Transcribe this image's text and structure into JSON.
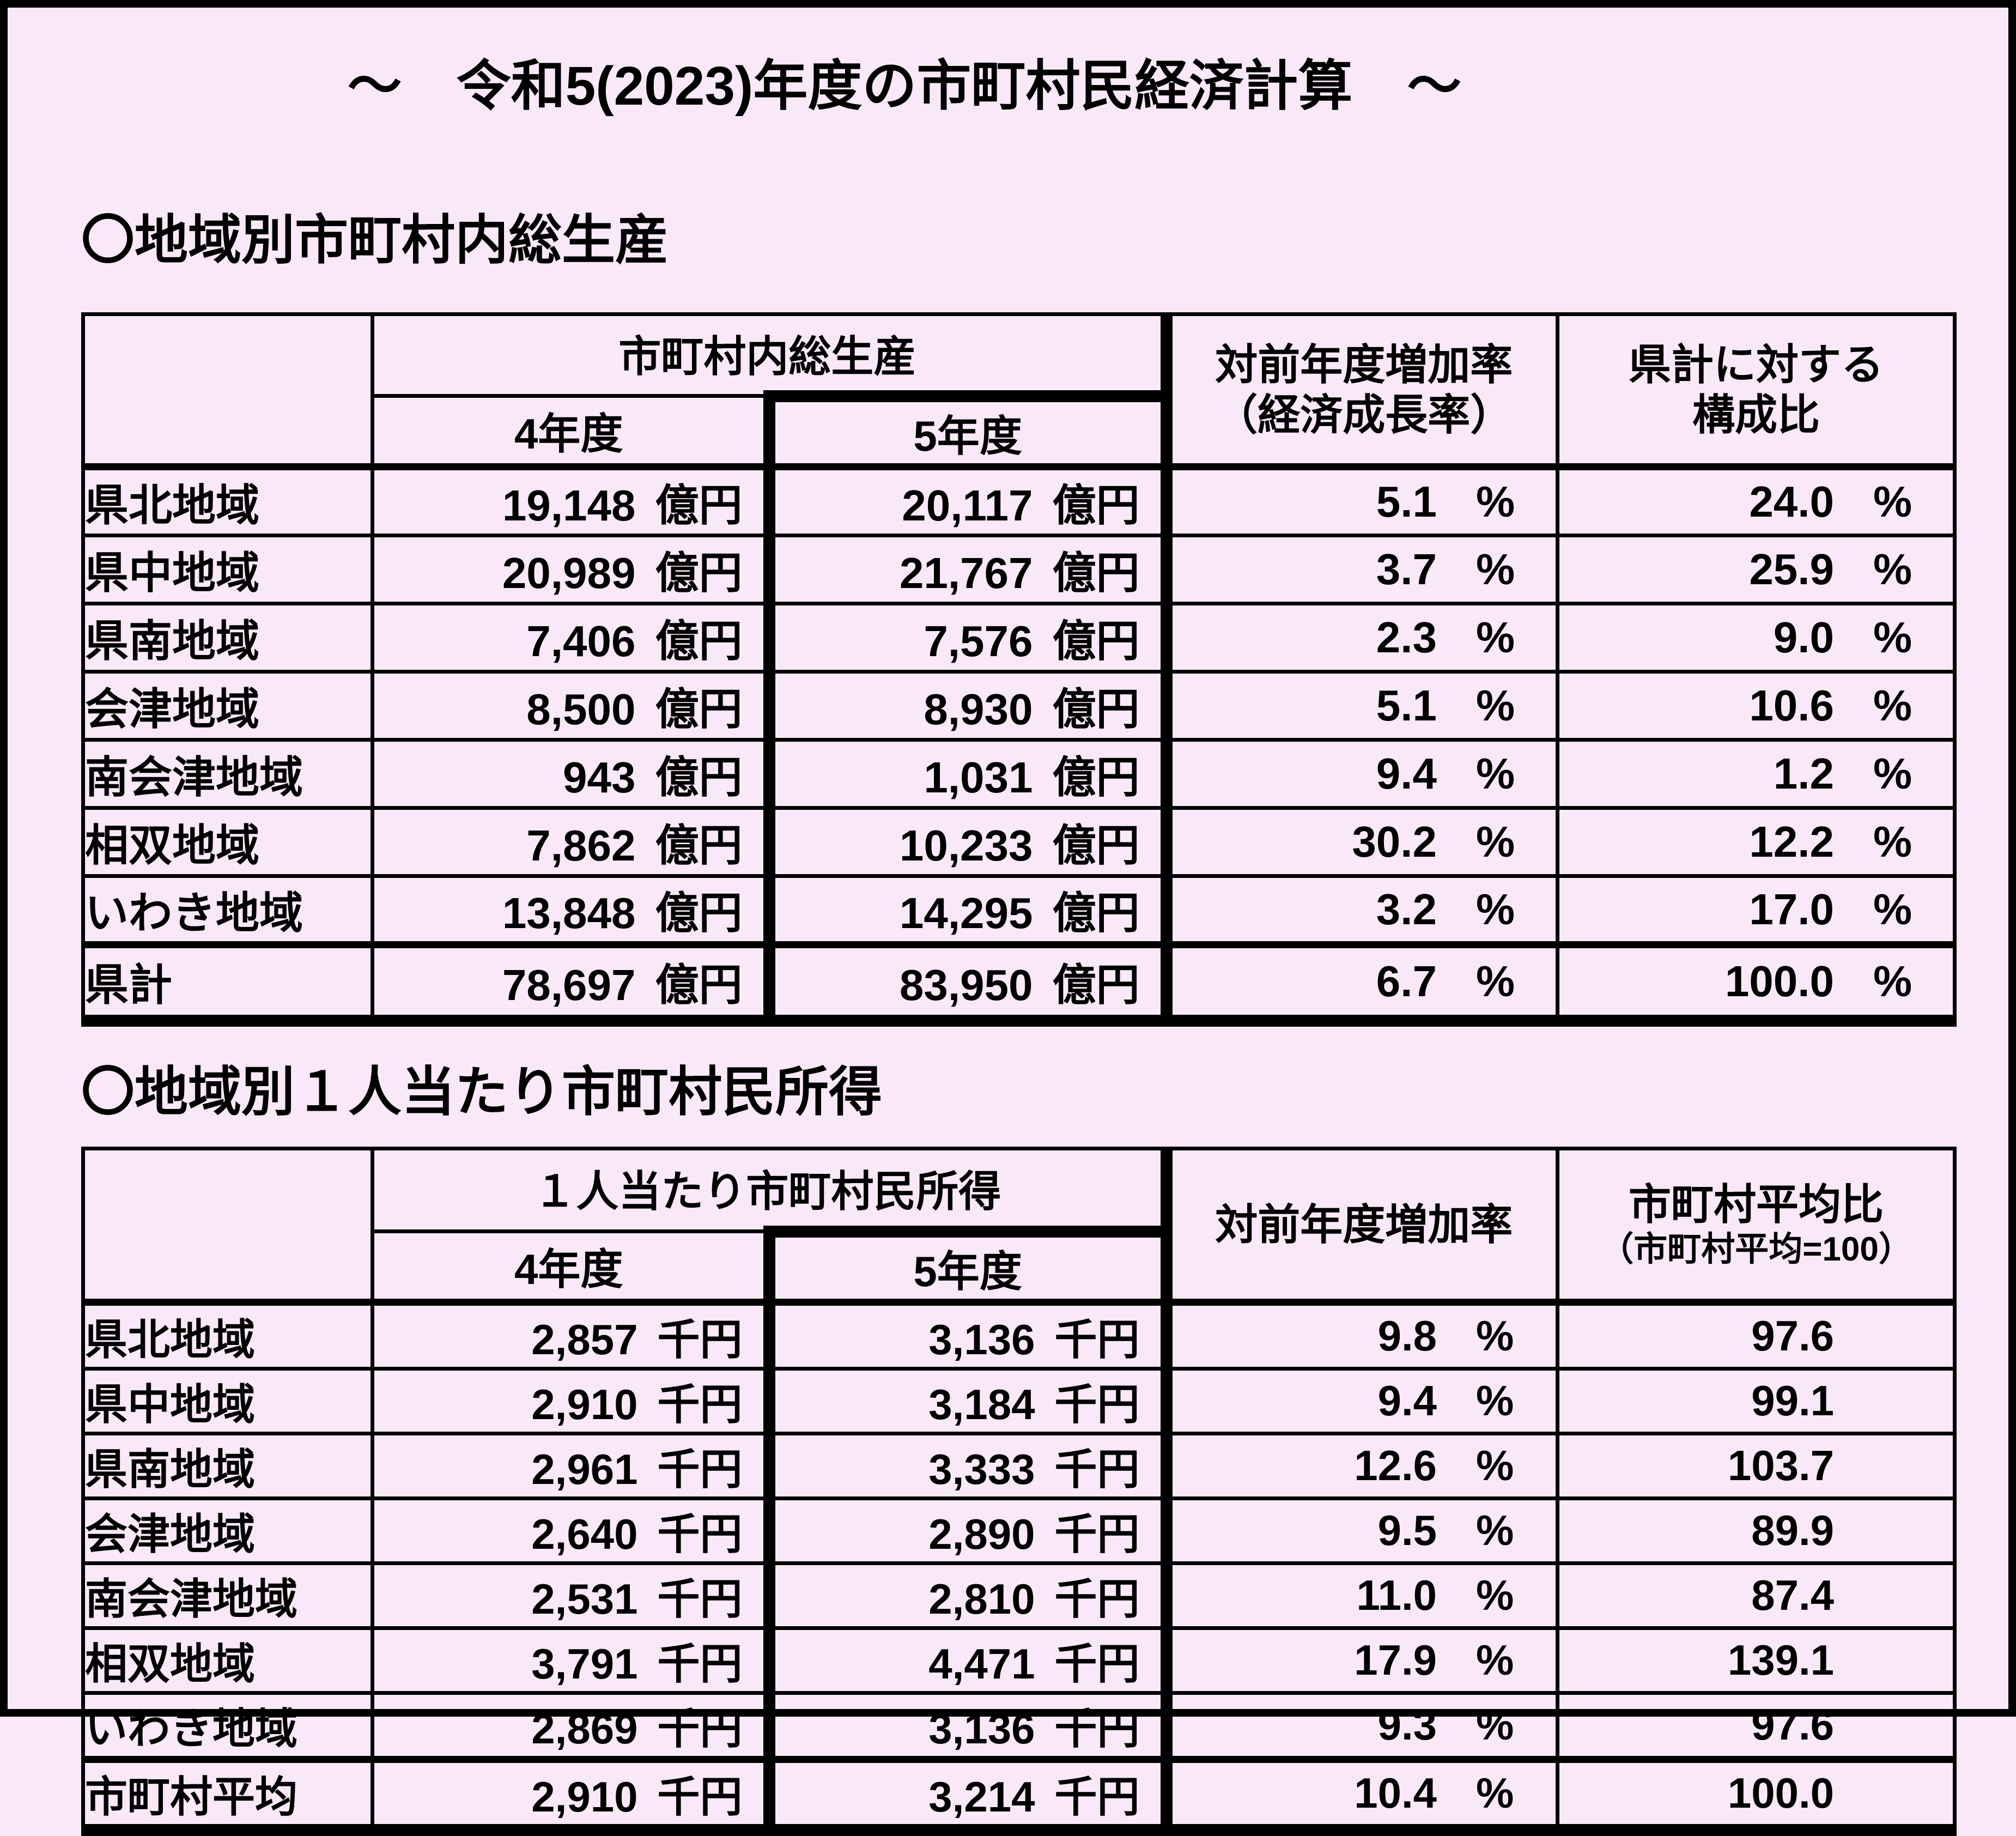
{
  "title": "～　令和5(2023)年度の市町村民経済計算　～",
  "colors": {
    "background": "#f9e9f8",
    "border": "#000000",
    "text": "#000000"
  },
  "section1": {
    "heading": "〇地域別市町村内総生産",
    "table": {
      "col_group_header": "市町村内総生産",
      "col_year4": "4年度",
      "col_year5": "5年度",
      "col_growth_line1": "対前年度増加率",
      "col_growth_line2": "（経済成長率）",
      "col_share_line1": "県計に対する",
      "col_share_line2": "構成比",
      "unit": "億円",
      "percent": "%",
      "rows": [
        {
          "region": "県北地域",
          "y4": "19,148",
          "y5": "20,117",
          "growth": "5.1",
          "share": "24.0"
        },
        {
          "region": "県中地域",
          "y4": "20,989",
          "y5": "21,767",
          "growth": "3.7",
          "share": "25.9"
        },
        {
          "region": "県南地域",
          "y4": "7,406",
          "y5": "7,576",
          "growth": "2.3",
          "share": "9.0"
        },
        {
          "region": "会津地域",
          "y4": "8,500",
          "y5": "8,930",
          "growth": "5.1",
          "share": "10.6"
        },
        {
          "region": "南会津地域",
          "y4": "943",
          "y5": "1,031",
          "growth": "9.4",
          "share": "1.2"
        },
        {
          "region": "相双地域",
          "y4": "7,862",
          "y5": "10,233",
          "growth": "30.2",
          "share": "12.2"
        },
        {
          "region": "いわき地域",
          "y4": "13,848",
          "y5": "14,295",
          "growth": "3.2",
          "share": "17.0"
        },
        {
          "region": "県計",
          "y4": "78,697",
          "y5": "83,950",
          "growth": "6.7",
          "share": "100.0",
          "total": true
        }
      ]
    }
  },
  "section2": {
    "heading": "〇地域別１人当たり市町村民所得",
    "table": {
      "col_group_header": "１人当たり市町村民所得",
      "col_year4": "4年度",
      "col_year5": "5年度",
      "col_growth_line1": "対前年度増加率",
      "col_ratio_line1": "市町村平均比",
      "col_ratio_line2": "（市町村平均=100）",
      "unit": "千円",
      "percent": "%",
      "rows": [
        {
          "region": "県北地域",
          "y4": "2,857",
          "y5": "3,136",
          "growth": "9.8",
          "ratio": "97.6"
        },
        {
          "region": "県中地域",
          "y4": "2,910",
          "y5": "3,184",
          "growth": "9.4",
          "ratio": "99.1"
        },
        {
          "region": "県南地域",
          "y4": "2,961",
          "y5": "3,333",
          "growth": "12.6",
          "ratio": "103.7"
        },
        {
          "region": "会津地域",
          "y4": "2,640",
          "y5": "2,890",
          "growth": "9.5",
          "ratio": "89.9"
        },
        {
          "region": "南会津地域",
          "y4": "2,531",
          "y5": "2,810",
          "growth": "11.0",
          "ratio": "87.4"
        },
        {
          "region": "相双地域",
          "y4": "3,791",
          "y5": "4,471",
          "growth": "17.9",
          "ratio": "139.1"
        },
        {
          "region": "いわき地域",
          "y4": "2,869",
          "y5": "3,136",
          "growth": "9.3",
          "ratio": "97.6"
        },
        {
          "region": "市町村平均",
          "y4": "2,910",
          "y5": "3,214",
          "growth": "10.4",
          "ratio": "100.0",
          "total": true
        }
      ]
    }
  }
}
